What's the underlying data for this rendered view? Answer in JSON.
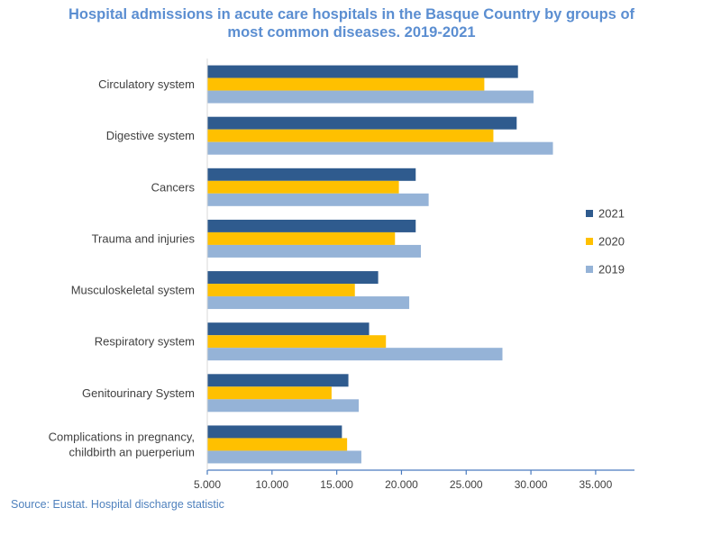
{
  "chart_data": {
    "type": "bar",
    "orientation": "horizontal",
    "title_lines": [
      "Hospital admissions in acute care hospitals in the Basque Country by groups of",
      "most common diseases. 2019-2021"
    ],
    "categories": [
      [
        "Circulatory system"
      ],
      [
        "Digestive system"
      ],
      [
        "Cancers"
      ],
      [
        "Trauma and injuries"
      ],
      [
        "Musculoskeletal system"
      ],
      [
        "Respiratory system"
      ],
      [
        "Genitourinary System"
      ],
      [
        "Complications in pregnancy,",
        "childbirth an puerperium"
      ]
    ],
    "series": [
      {
        "name": "2021",
        "color": "#2f5b8e",
        "values": [
          29000,
          28900,
          21100,
          21100,
          18200,
          17500,
          15900,
          15400
        ]
      },
      {
        "name": "2020",
        "color": "#ffc000",
        "values": [
          26400,
          27100,
          19800,
          19500,
          16400,
          18800,
          14600,
          15800
        ]
      },
      {
        "name": "2019",
        "color": "#95b3d7",
        "values": [
          30200,
          31700,
          22100,
          21500,
          20600,
          27800,
          16700,
          16900
        ]
      }
    ],
    "xlim": [
      5000,
      38000
    ],
    "ticks": [
      5000,
      10000,
      15000,
      20000,
      25000,
      30000,
      35000
    ],
    "tick_labels": [
      "5.000",
      "10.000",
      "15.000",
      "20.000",
      "25.000",
      "30.000",
      "35.000"
    ],
    "legend_order": [
      "2021",
      "2020",
      "2019"
    ],
    "legend_position": "right",
    "axis_color": "#4a7bbf"
  },
  "source": "Source: Eustat. Hospital discharge statistic"
}
